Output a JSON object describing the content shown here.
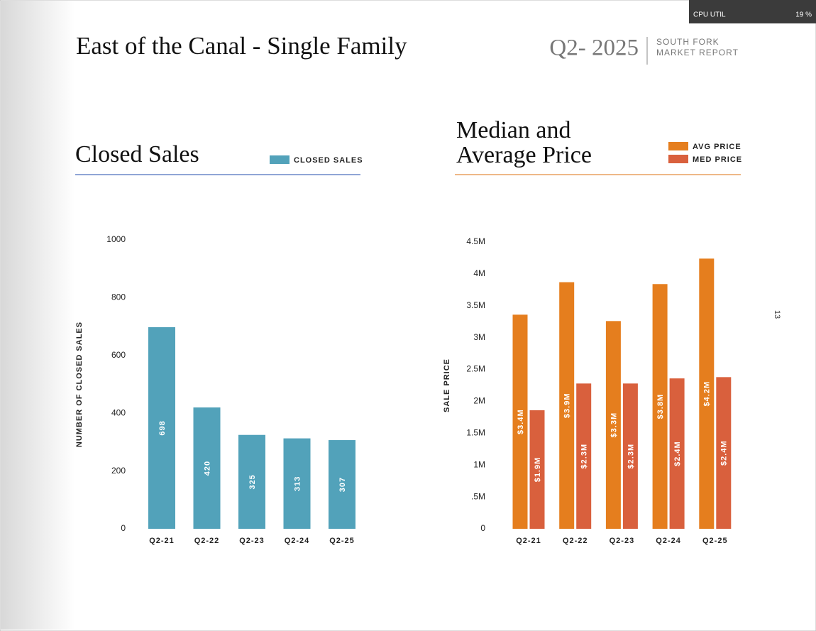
{
  "page": {
    "title": "East of the Canal - Single Family",
    "period": "Q2- 2025",
    "report": [
      "SOUTH FORK",
      "MARKET REPORT"
    ],
    "page_number": "13",
    "overlay": {
      "label": "CPU UTIL",
      "value": "19 %"
    }
  },
  "chart_data": [
    {
      "type": "bar",
      "title": [
        "Closed Sales"
      ],
      "ylabel": "NUMBER OF CLOSED SALES",
      "categories": [
        "Q2-21",
        "Q2-22",
        "Q2-23",
        "Q2-24",
        "Q2-25"
      ],
      "series": [
        {
          "name": "CLOSED SALES",
          "color": "#52a2ba",
          "values": [
            698,
            420,
            325,
            313,
            307
          ]
        }
      ],
      "ylim": [
        0,
        1000
      ],
      "yticks": [
        0,
        200,
        400,
        600,
        800,
        1000
      ],
      "rule_color": "#6b87c9"
    },
    {
      "type": "bar",
      "title": [
        "Median and",
        "Average Price"
      ],
      "ylabel": "SALE PRICE",
      "categories": [
        "Q2-21",
        "Q2-22",
        "Q2-23",
        "Q2-24",
        "Q2-25"
      ],
      "series": [
        {
          "name": "AVG PRICE",
          "color": "#e57e1e",
          "values": [
            3360000,
            3870000,
            3260000,
            3840000,
            4240000
          ],
          "value_labels": [
            "$3.4M",
            "$3.9M",
            "$3.3M",
            "$3.8M",
            "$4.2M"
          ]
        },
        {
          "name": "MED PRICE",
          "color": "#d9603d",
          "values": [
            1860000,
            2280000,
            2280000,
            2360000,
            2380000
          ],
          "value_labels": [
            "$1.9M",
            "$2.3M",
            "$2.3M",
            "$2.4M",
            "$2.4M"
          ]
        }
      ],
      "ylim": [
        0,
        4500000
      ],
      "yticks": [
        0,
        {
          "value": 500000,
          "label": ".5M"
        },
        {
          "value": 1000000,
          "label": "1M"
        },
        {
          "value": 1500000,
          "label": "1.5M"
        },
        {
          "value": 2000000,
          "label": "2M"
        },
        {
          "value": 2500000,
          "label": "2.5M"
        },
        {
          "value": 3000000,
          "label": "3M"
        },
        {
          "value": 3500000,
          "label": "3.5M"
        },
        {
          "value": 4000000,
          "label": "4M"
        },
        {
          "value": 4500000,
          "label": "4.5M"
        }
      ],
      "rule_color": "#e8a060"
    }
  ]
}
